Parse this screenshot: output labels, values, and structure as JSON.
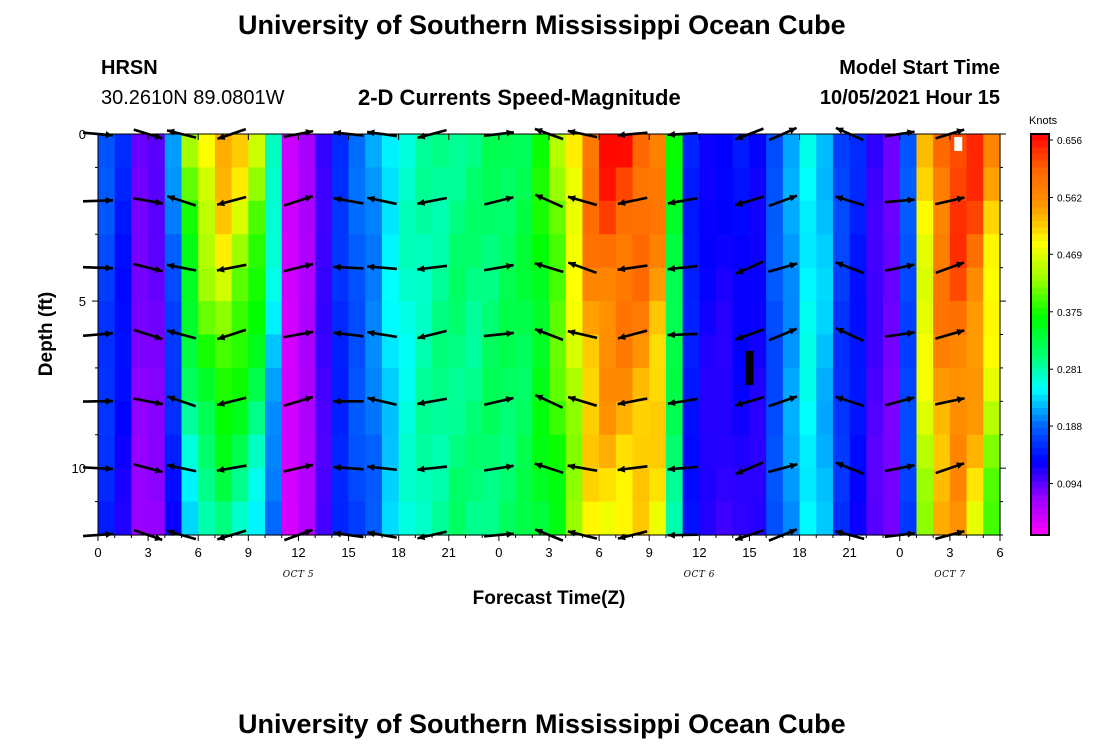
{
  "header": {
    "title": "University of Southern Mississippi Ocean Cube",
    "station": "HRSN",
    "coords": "30.2610N  89.0801W",
    "plot_title": "2-D Currents Speed-Magnitude",
    "model_start_label": "Model Start Time",
    "model_start_value": "10/05/2021 Hour 15"
  },
  "footer": {
    "title": "University of Southern Mississippi Ocean Cube"
  },
  "colors": {
    "scale": [
      "#ff00ff",
      "#9900ff",
      "#0000ff",
      "#0066ff",
      "#00ffff",
      "#00ff66",
      "#00ff00",
      "#99ff00",
      "#ffff00",
      "#ff9900",
      "#ff6600",
      "#ff0000"
    ]
  },
  "chart_data": {
    "type": "heatmap",
    "title": "2-D Currents Speed-Magnitude",
    "xlabel": "Forecast Time(Z)",
    "ylabel": "Depth (ft)",
    "x_range_hours": [
      0,
      54
    ],
    "ylim": [
      0,
      12
    ],
    "y_ticks": [
      0,
      5,
      10
    ],
    "x_tick_labels": [
      "0",
      "3",
      "6",
      "9",
      "12",
      "15",
      "18",
      "21",
      "0",
      "3",
      "6",
      "9",
      "12",
      "15",
      "18",
      "21",
      "0",
      "3",
      "6"
    ],
    "date_labels": [
      {
        "text": "OCT 5",
        "hour": 12
      },
      {
        "text": "OCT 6",
        "hour": 36
      },
      {
        "text": "OCT 7",
        "hour": 51
      }
    ],
    "colorbar": {
      "units": "Knots",
      "min": 0.0,
      "max": 0.656,
      "ticks": [
        "0.656",
        "0.562",
        "0.469",
        "0.375",
        "0.281",
        "0.188",
        "0.094"
      ]
    },
    "speed_profile": {
      "hours": [
        0,
        1,
        2,
        3,
        4,
        5,
        6,
        7,
        8,
        9,
        10,
        11,
        12,
        13,
        14,
        15,
        16,
        17,
        18,
        19,
        20,
        21,
        22,
        23,
        24,
        25,
        26,
        27,
        28,
        29,
        30,
        31,
        32,
        33,
        34,
        35,
        36,
        37,
        38,
        39,
        40,
        41,
        42,
        43,
        44,
        45,
        46,
        47,
        48,
        49,
        50,
        51,
        52,
        53,
        54
      ],
      "surface_knots": [
        0.17,
        0.14,
        0.08,
        0.09,
        0.2,
        0.42,
        0.5,
        0.55,
        0.5,
        0.45,
        0.28,
        0.03,
        0.05,
        0.1,
        0.15,
        0.18,
        0.2,
        0.24,
        0.26,
        0.27,
        0.28,
        0.29,
        0.29,
        0.3,
        0.31,
        0.32,
        0.36,
        0.42,
        0.5,
        0.6,
        0.64,
        0.64,
        0.62,
        0.58,
        0.35,
        0.14,
        0.12,
        0.12,
        0.13,
        0.12,
        0.17,
        0.2,
        0.24,
        0.22,
        0.16,
        0.14,
        0.1,
        0.08,
        0.17,
        0.5,
        0.6,
        0.64,
        0.63,
        0.55,
        0.4
      ],
      "bottom_factor": [
        0.8,
        0.78,
        0.72,
        0.65,
        0.58,
        0.52,
        0.5,
        0.5,
        0.52,
        0.5,
        0.6,
        0.8,
        0.9,
        0.9,
        0.9,
        0.88,
        0.88,
        0.9,
        0.95,
        1.0,
        1.0,
        1.0,
        0.98,
        0.98,
        0.96,
        0.95,
        0.92,
        0.85,
        0.8,
        0.78,
        0.75,
        0.75,
        0.78,
        0.8,
        0.8,
        0.9,
        0.85,
        0.8,
        0.8,
        0.85,
        0.95,
        1.0,
        1.0,
        0.95,
        0.9,
        0.85,
        0.85,
        0.88,
        0.9,
        0.85,
        0.85,
        0.82,
        0.75,
        0.7,
        0.65
      ]
    },
    "vector_rows_ft": [
      0,
      2,
      4,
      6,
      8,
      10,
      12
    ],
    "vector_hours": [
      0,
      3,
      5,
      8,
      12,
      15,
      17,
      20,
      24,
      27,
      29,
      32,
      35,
      39,
      41,
      45,
      48,
      51
    ],
    "vector_directions_deg": [
      0,
      -15,
      165,
      195,
      15,
      175,
      170,
      190,
      10,
      160,
      165,
      190,
      185,
      200,
      20,
      160,
      10,
      15
    ],
    "markers": [
      {
        "label": "surface-white-marker",
        "hour": 51.5,
        "depth_ft": 0.2
      },
      {
        "label": "black-marker",
        "hour": 39,
        "depth_ft": 7.0
      }
    ]
  }
}
